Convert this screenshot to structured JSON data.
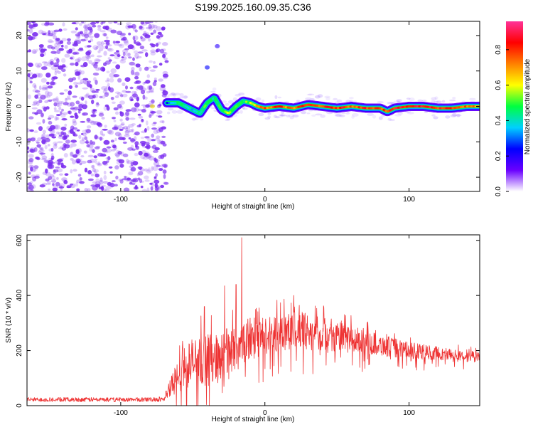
{
  "title": "S199.2025.160.09.35.C36",
  "colors": {
    "axis": "#000000",
    "snr_line": "#ee3333",
    "noise_field": "#7a2cf0",
    "background": "#ffffff"
  },
  "chart_data": [
    {
      "type": "heatmap",
      "xlabel": "Height of straight line (km)",
      "ylabel": "Frequency (Hz)",
      "xlim": [
        -165,
        149
      ],
      "ylim": [
        -24,
        24
      ],
      "x_ticks": [
        -100,
        0,
        100
      ],
      "x_tick_labels": [
        "-100",
        "0",
        "100"
      ],
      "y_ticks": [
        -20,
        -10,
        0,
        10,
        20
      ],
      "y_tick_labels": [
        "-20",
        "-10",
        "0",
        "10",
        "20"
      ],
      "grid": false,
      "noise_region_x": [
        -165,
        -68
      ],
      "colorbar": {
        "label": "Normalized spectral amplitude",
        "range": [
          0,
          0.96
        ],
        "ticks": [
          0.0,
          0.2,
          0.4,
          0.6,
          0.8
        ],
        "tick_labels": [
          "0.0",
          "0.2",
          "0.4",
          "0.6",
          "0.8"
        ],
        "colormap": [
          "#ffffff",
          "#6a00ff",
          "#0000ff",
          "#00d0ff",
          "#00ff40",
          "#ffff00",
          "#ff8000",
          "#ff0000",
          "#ff3399"
        ]
      },
      "ridge": {
        "x": [
          -68,
          -60,
          -50,
          -45,
          -40,
          -35,
          -30,
          -25,
          -20,
          -15,
          -10,
          -5,
          0,
          10,
          20,
          30,
          40,
          50,
          60,
          70,
          80,
          85,
          90,
          100,
          110,
          120,
          130,
          140,
          149
        ],
        "frequency": [
          1,
          1,
          -1,
          -2,
          1,
          2.5,
          -1,
          -2,
          0,
          1.5,
          1,
          0,
          -0.5,
          0,
          -0.5,
          0.5,
          0,
          -0.5,
          0,
          -0.5,
          -0.5,
          -1.5,
          -0.5,
          0,
          0,
          -0.5,
          -0.5,
          0,
          0
        ],
        "peak_amplitude": [
          0.25,
          0.5,
          0.4,
          0.45,
          0.55,
          0.45,
          0.55,
          0.6,
          0.55,
          0.5,
          0.6,
          0.75,
          0.8,
          0.85,
          0.8,
          0.85,
          0.85,
          0.9,
          0.85,
          0.9,
          0.9,
          0.85,
          0.9,
          0.9,
          0.95,
          0.9,
          0.9,
          0.8,
          0.75
        ]
      },
      "isolated_blobs": [
        {
          "x": -40,
          "frequency": 11,
          "amplitude": 0.1
        },
        {
          "x": -33,
          "frequency": 17,
          "amplitude": 0.08
        },
        {
          "x": -78,
          "frequency": 0,
          "amplitude": 0.25
        }
      ]
    },
    {
      "type": "line",
      "xlabel": "Height of straight line (km)",
      "ylabel": "SNR (10 * v/v)",
      "xlim": [
        -165,
        149
      ],
      "ylim": [
        0,
        620
      ],
      "x_ticks": [
        -100,
        0,
        100
      ],
      "x_tick_labels": [
        "-100",
        "0",
        "100"
      ],
      "y_ticks": [
        0,
        200,
        400,
        600
      ],
      "y_tick_labels": [
        "0",
        "200",
        "400",
        "600"
      ],
      "grid": false,
      "series": [
        {
          "x": [
            -165,
            -140,
            -120,
            -100,
            -80,
            -70,
            -62,
            -55,
            -48,
            -40,
            -30,
            -25,
            -20,
            -16,
            -10,
            0,
            10,
            20,
            30,
            40,
            50,
            60,
            70,
            80,
            90,
            100,
            110,
            120,
            130,
            140,
            149
          ],
          "envelope_median": [
            22,
            22,
            22,
            22,
            22,
            25,
            90,
            150,
            160,
            170,
            180,
            200,
            210,
            220,
            230,
            250,
            270,
            275,
            270,
            260,
            250,
            240,
            230,
            220,
            210,
            200,
            195,
            190,
            185,
            180,
            175
          ],
          "envelope_spread": [
            8,
            8,
            8,
            8,
            8,
            10,
            60,
            90,
            90,
            90,
            80,
            90,
            90,
            80,
            70,
            70,
            70,
            70,
            65,
            60,
            55,
            50,
            45,
            40,
            35,
            30,
            28,
            25,
            22,
            20,
            20
          ],
          "peaks": [
            {
              "x": -16,
              "y": 610
            },
            {
              "x": -20,
              "y": 440
            },
            {
              "x": -28,
              "y": 435
            },
            {
              "x": -42,
              "y": 360
            },
            {
              "x": 20,
              "y": 400
            }
          ]
        }
      ]
    }
  ]
}
